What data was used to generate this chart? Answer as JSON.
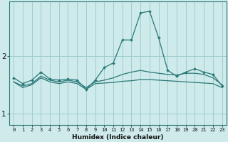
{
  "xlabel": "Humidex (Indice chaleur)",
  "ylabel": "",
  "background_color": "#ceeaea",
  "grid_color": "#9ecece",
  "line_color": "#2a7878",
  "x_values": [
    0,
    1,
    2,
    3,
    4,
    5,
    6,
    7,
    8,
    9,
    10,
    11,
    12,
    13,
    14,
    15,
    16,
    17,
    18,
    19,
    20,
    21,
    22,
    23
  ],
  "line1": [
    1.62,
    1.52,
    1.58,
    1.72,
    1.6,
    1.58,
    1.6,
    1.58,
    1.42,
    1.58,
    1.8,
    1.88,
    2.28,
    2.28,
    2.75,
    2.78,
    2.32,
    1.75,
    1.65,
    1.72,
    1.78,
    1.72,
    1.68,
    1.48
  ],
  "line2": [
    1.55,
    1.48,
    1.52,
    1.65,
    1.58,
    1.55,
    1.58,
    1.55,
    1.45,
    1.55,
    1.58,
    1.62,
    1.68,
    1.72,
    1.75,
    1.72,
    1.7,
    1.68,
    1.67,
    1.7,
    1.7,
    1.68,
    1.62,
    1.5
  ],
  "line3": [
    1.55,
    1.45,
    1.5,
    1.62,
    1.55,
    1.52,
    1.55,
    1.52,
    1.42,
    1.52,
    1.53,
    1.54,
    1.56,
    1.57,
    1.59,
    1.59,
    1.58,
    1.57,
    1.56,
    1.55,
    1.54,
    1.53,
    1.52,
    1.45
  ],
  "ylim": [
    0.8,
    2.95
  ],
  "yticks": [
    1,
    2
  ],
  "xlim": [
    -0.5,
    23.5
  ]
}
